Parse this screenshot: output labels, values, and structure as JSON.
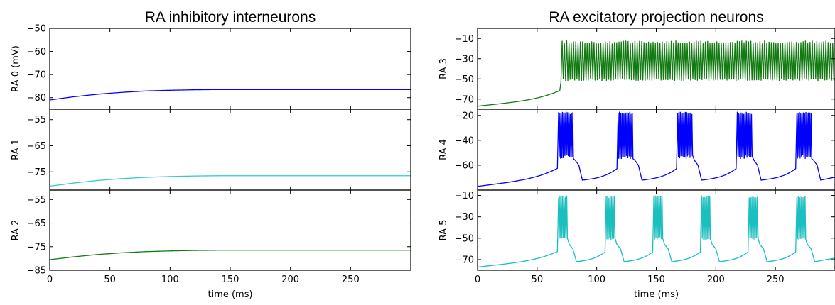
{
  "chart_data": [
    {
      "type": "line",
      "title": "RA inhibitory interneurons",
      "xlabel": "time (ms)",
      "xlim": [
        0,
        300
      ],
      "xticks": [
        0,
        50,
        100,
        150,
        200,
        250
      ],
      "xtick_labels": [
        "0",
        "50",
        "100",
        "150",
        "200",
        "250"
      ],
      "panels": [
        {
          "ylabel": "RA 0 (mV)",
          "ylim": [
            -85,
            -50
          ],
          "yticks": [
            -50,
            -60,
            -70,
            -80
          ],
          "ytick_labels": [
            "−50",
            "−60",
            "−70",
            "−80"
          ],
          "series": [
            {
              "color": "#0000ff",
              "values": [
                -81,
                -79.6,
                -78.5,
                -77.7,
                -77.1,
                -76.8,
                -76.6,
                -76.5,
                -76.5,
                -76.5,
                -76.5,
                -76.5,
                -76.5,
                -76.5,
                -76.5,
                -76.5
              ]
            }
          ]
        },
        {
          "ylabel": "RA 1",
          "ylim": [
            -82,
            -51
          ],
          "yticks": [
            -55,
            -65,
            -75
          ],
          "ytick_labels": [
            "−55",
            "−65",
            "−75"
          ],
          "series": [
            {
              "color": "#35c9c9",
              "values": [
                -80.5,
                -79.3,
                -78.3,
                -77.6,
                -77.1,
                -76.8,
                -76.6,
                -76.5,
                -76.5,
                -76.5,
                -76.5,
                -76.5,
                -76.5,
                -76.5,
                -76.5,
                -76.5
              ]
            }
          ]
        },
        {
          "ylabel": "RA 2",
          "ylim": [
            -85,
            -51
          ],
          "yticks": [
            -55,
            -65,
            -75,
            -85
          ],
          "ytick_labels": [
            "−55",
            "−65",
            "−75",
            "−85"
          ],
          "series": [
            {
              "color": "#117a11",
              "values": [
                -80.5,
                -79.3,
                -78.3,
                -77.6,
                -77.1,
                -76.8,
                -76.6,
                -76.5,
                -76.5,
                -76.5,
                -76.5,
                -76.5,
                -76.5,
                -76.5,
                -76.5,
                -76.5
              ]
            }
          ]
        }
      ]
    },
    {
      "type": "line",
      "title": "RA excitatory projection neurons",
      "xlabel": "time (ms)",
      "xlim": [
        0,
        300
      ],
      "xticks": [
        0,
        50,
        100,
        150,
        200,
        250
      ],
      "xtick_labels": [
        "0",
        "50",
        "100",
        "150",
        "200",
        "250"
      ],
      "panels": [
        {
          "ylabel": "RA 3",
          "ylim": [
            -80,
            0
          ],
          "yticks": [
            -10,
            -30,
            -50,
            -70
          ],
          "ytick_labels": [
            "−10",
            "−30",
            "−50",
            "−70"
          ],
          "series": [
            {
              "color": "#117a11",
              "pattern": "tonic",
              "rest": -77,
              "threshold": -61,
              "burst_onset_ms": 70,
              "spike_peak": -12,
              "trough": -52,
              "spikes_in_burst": 120
            }
          ]
        },
        {
          "ylabel": "RA 4",
          "ylim": [
            -80,
            -15
          ],
          "yticks": [
            -20,
            -40,
            -60
          ],
          "ytick_labels": [
            "−20",
            "−40",
            "−60"
          ],
          "series": [
            {
              "color": "#0000ff",
              "pattern": "bursts",
              "rest": -77,
              "threshold": -62,
              "spike_peak": -17,
              "trough": -55,
              "burst_starts_ms": [
                68,
                118,
                168,
                218,
                268
              ],
              "burst_duration_ms": 13,
              "spikes_per_burst": 12
            }
          ]
        },
        {
          "ylabel": "RA 5",
          "ylim": [
            -80,
            -5
          ],
          "yticks": [
            -10,
            -30,
            -50,
            -70
          ],
          "ytick_labels": [
            "−10",
            "−30",
            "−50",
            "−70"
          ],
          "series": [
            {
              "color": "#1cbfbf",
              "pattern": "bursts",
              "rest": -77,
              "threshold": -62,
              "spike_peak": -10,
              "trough": -52,
              "burst_starts_ms": [
                68,
                108,
                148,
                188,
                228,
                268
              ],
              "burst_duration_ms": 8,
              "spikes_per_burst": 7
            }
          ]
        }
      ]
    }
  ]
}
